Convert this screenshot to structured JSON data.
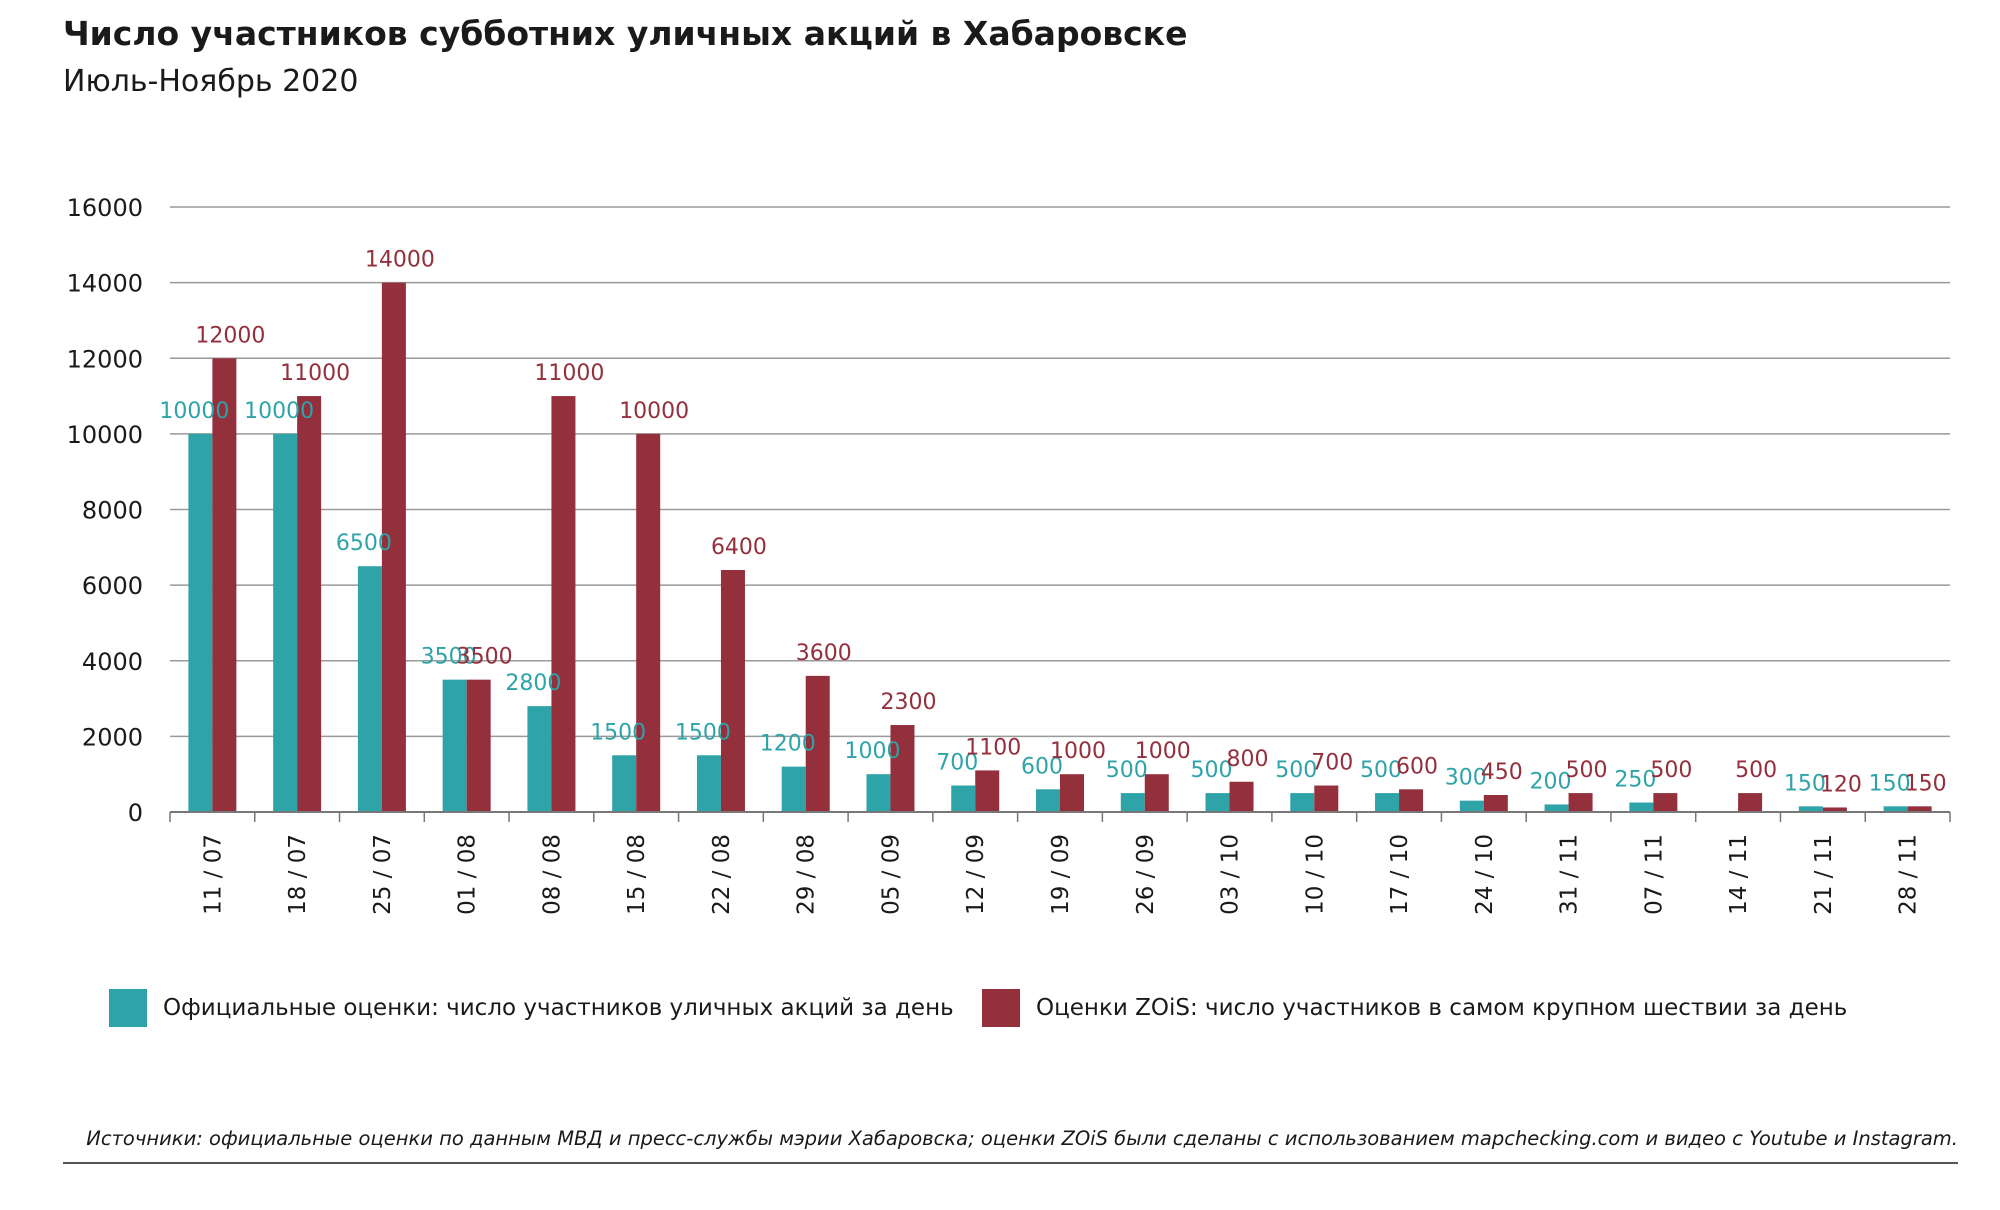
{
  "title": "Число участников субботних уличных акций в Хабаровске",
  "subtitle": "Июль-Ноябрь 2020",
  "source": "Источники: официальные оценки по данным МВД и пресс-службы мэрии Хабаровска; оценки ZOiS были сделаны с использованием mapchecking.com и видео с Youtube и Instagram.",
  "colors": {
    "official": "#2ea3a8",
    "zois": "#942f3c",
    "grid": "#9a9a9a",
    "axis": "#777777",
    "text": "#1a1a1a"
  },
  "legend": {
    "official": "Официальные оценки: число участников уличных акций за день",
    "zois": "Оценки ZOiS: число участников в самом крупном шествии за день"
  },
  "chart_data": {
    "type": "bar",
    "title": "Число участников субботних уличных акций в Хабаровске",
    "subtitle": "Июль-Ноябрь 2020",
    "xlabel": "",
    "ylabel": "",
    "ylim": [
      0,
      16000
    ],
    "yticks": [
      0,
      2000,
      4000,
      6000,
      8000,
      10000,
      12000,
      14000,
      16000
    ],
    "grid": true,
    "legend_position": "bottom",
    "categories": [
      "11 / 07",
      "18 / 07",
      "25 / 07",
      "01 / 08",
      "08 / 08",
      "15 / 08",
      "22 / 08",
      "29 / 08",
      "05 / 09",
      "12 / 09",
      "19 / 09",
      "26 / 09",
      "03 / 10",
      "10 / 10",
      "17 / 10",
      "24 / 10",
      "31 / 11",
      "07 / 11",
      "14 / 11",
      "21 / 11",
      "28 / 11"
    ],
    "series": [
      {
        "name": "Официальные оценки: число участников уличных акций за день",
        "key": "official",
        "values": [
          10000,
          10000,
          6500,
          3500,
          2800,
          1500,
          1500,
          1200,
          1000,
          700,
          600,
          500,
          500,
          500,
          500,
          300,
          200,
          250,
          null,
          150,
          150
        ]
      },
      {
        "name": "Оценки ZOiS: число участников в самом крупном шествии за день",
        "key": "zois",
        "values": [
          12000,
          11000,
          14000,
          3500,
          11000,
          10000,
          6400,
          3600,
          2300,
          1100,
          1000,
          1000,
          800,
          700,
          600,
          450,
          500,
          500,
          500,
          120,
          150
        ]
      }
    ]
  }
}
